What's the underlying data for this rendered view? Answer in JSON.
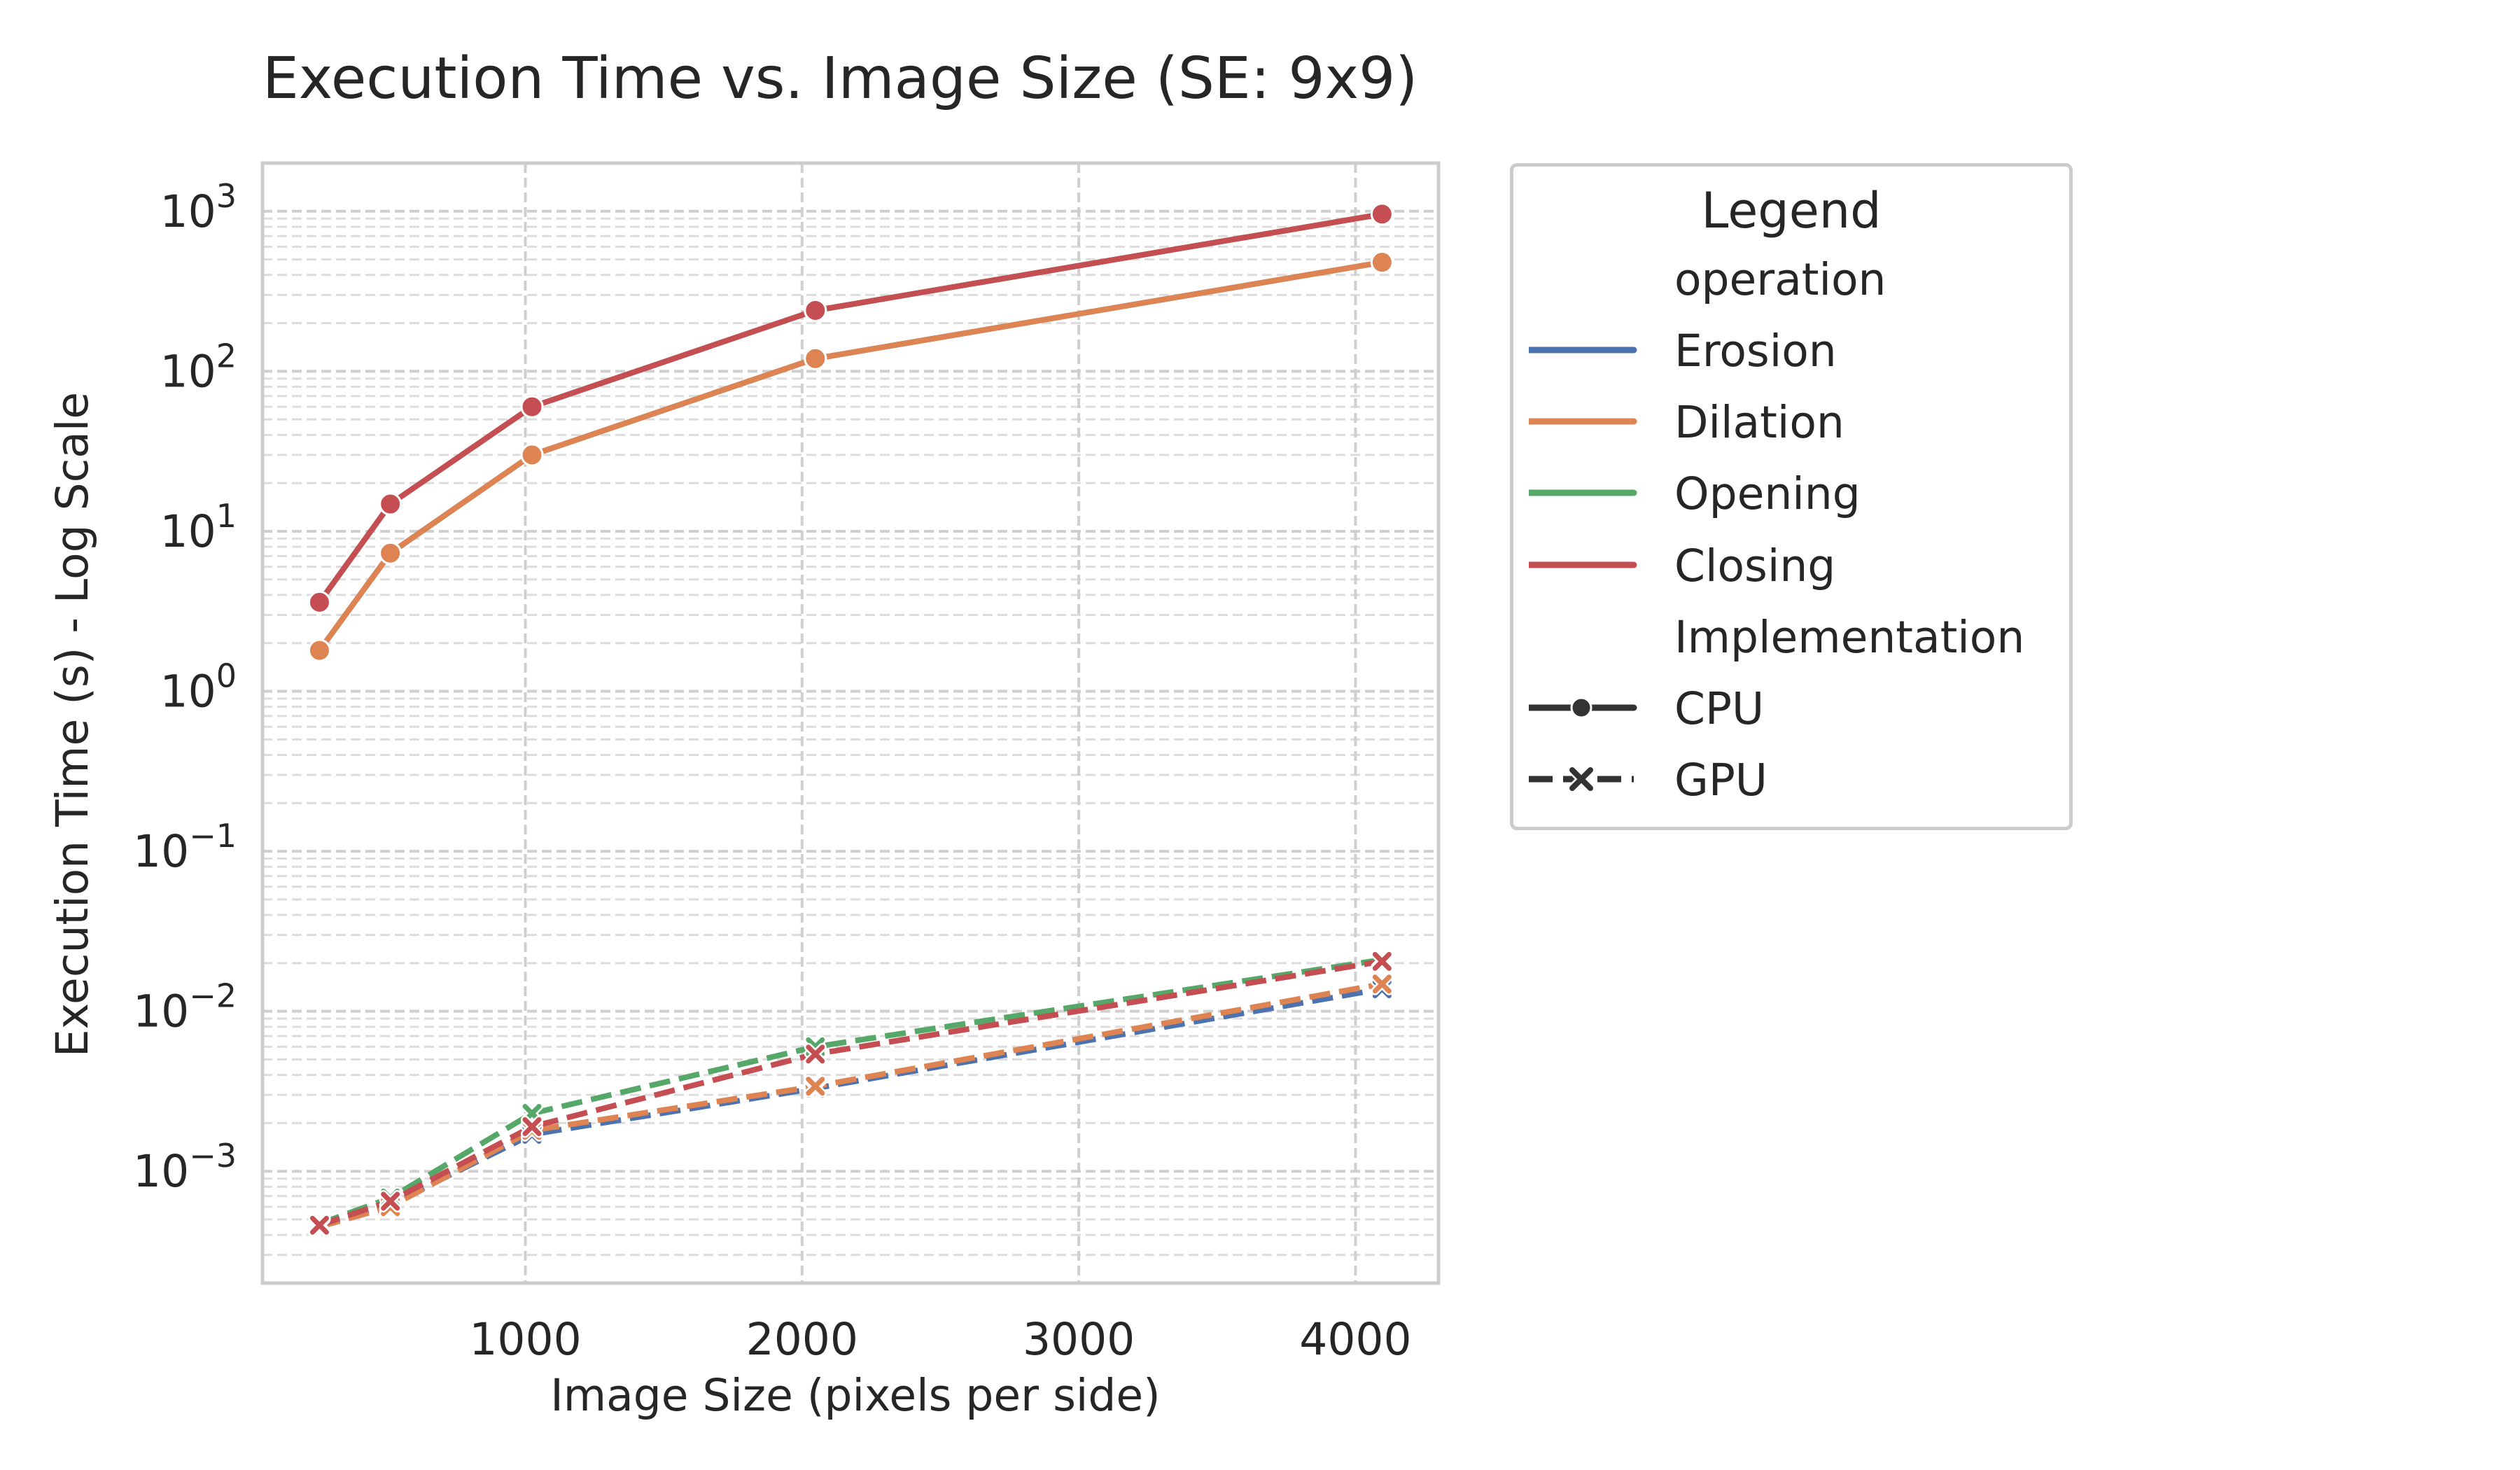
{
  "chart_data": {
    "type": "line",
    "title": "Execution Time vs. Image Size (SE: 9x9)",
    "xlabel": "Image Size (pixels per side)",
    "ylabel": "Execution Time (s) - Log Scale",
    "y_scale": "log",
    "xlim": [
      50,
      4300
    ],
    "ylim": [
      0.0002,
      2000
    ],
    "x_ticks": [
      1000,
      2000,
      3000,
      4000
    ],
    "x_tick_labels": [
      "1000",
      "2000",
      "3000",
      "4000"
    ],
    "y_ticks": [
      0.001,
      0.01,
      0.1,
      1,
      10,
      100,
      1000
    ],
    "y_tick_labels": [
      {
        "base": "10",
        "exp": "−3"
      },
      {
        "base": "10",
        "exp": "−2"
      },
      {
        "base": "10",
        "exp": "−1"
      },
      {
        "base": "10",
        "exp": "0"
      },
      {
        "base": "10",
        "exp": "1"
      },
      {
        "base": "10",
        "exp": "2"
      },
      {
        "base": "10",
        "exp": "3"
      }
    ],
    "grid": true,
    "legend_placement": "outside-right",
    "x": [
      256,
      512,
      1024,
      2048,
      4096
    ],
    "series": [
      {
        "name": "Erosion",
        "implementation": "CPU",
        "color": "#4c72b0",
        "values": [
          1.8,
          7.3,
          30,
          120,
          480
        ]
      },
      {
        "name": "Dilation",
        "implementation": "CPU",
        "color": "#dd8452",
        "values": [
          1.8,
          7.3,
          30,
          120,
          480
        ]
      },
      {
        "name": "Opening",
        "implementation": "CPU",
        "color": "#55a868",
        "values": [
          3.6,
          14.8,
          60,
          240,
          960
        ]
      },
      {
        "name": "Closing",
        "implementation": "CPU",
        "color": "#c44e52",
        "values": [
          3.6,
          14.8,
          60,
          240,
          960
        ]
      },
      {
        "name": "Erosion",
        "implementation": "GPU",
        "color": "#4c72b0",
        "values": [
          0.00046,
          0.00062,
          0.0017,
          0.0033,
          0.0138
        ]
      },
      {
        "name": "Dilation",
        "implementation": "GPU",
        "color": "#dd8452",
        "values": [
          0.00045,
          0.0006,
          0.0018,
          0.0034,
          0.0148
        ]
      },
      {
        "name": "Opening",
        "implementation": "GPU",
        "color": "#55a868",
        "values": [
          0.00047,
          0.00068,
          0.0023,
          0.006,
          0.021
        ]
      },
      {
        "name": "Closing",
        "implementation": "GPU",
        "color": "#c44e52",
        "values": [
          0.00046,
          0.00065,
          0.0019,
          0.0054,
          0.0205
        ]
      }
    ]
  },
  "legend": {
    "title": "Legend",
    "group_operation": "operation",
    "erosion": "Erosion",
    "dilation": "Dilation",
    "opening": "Opening",
    "closing": "Closing",
    "group_implementation": "Implementation",
    "cpu": "CPU",
    "gpu": "GPU"
  }
}
